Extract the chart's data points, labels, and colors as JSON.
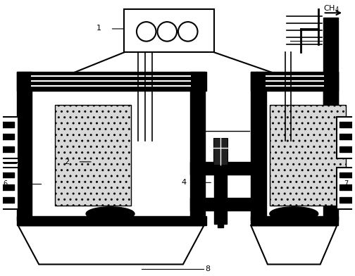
{
  "bg_color": "#ffffff",
  "lc": "#000000",
  "dc": "#000000",
  "figsize": [
    5.04,
    3.92
  ],
  "dpi": 100
}
